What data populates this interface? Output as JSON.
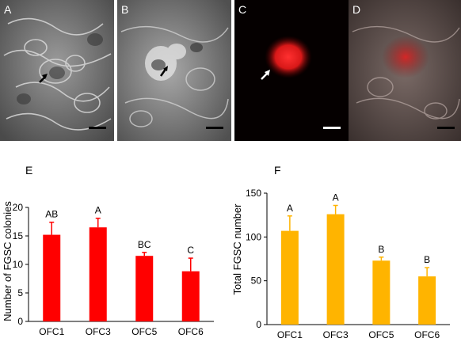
{
  "micrographs": {
    "panels": [
      {
        "label": "A",
        "style": "phase-contrast",
        "arrow": "black"
      },
      {
        "label": "B",
        "style": "phase-contrast",
        "arrow": "black"
      },
      {
        "label": "C",
        "style": "fluorescence-red",
        "arrow": "white"
      },
      {
        "label": "D",
        "style": "merged",
        "arrow": "none"
      }
    ]
  },
  "chart_data": [
    {
      "type": "bar",
      "panel_label": "E",
      "categories": [
        "OFC1",
        "OFC3",
        "OFC5",
        "OFC6"
      ],
      "values": [
        15.2,
        16.5,
        11.5,
        8.8
      ],
      "errors": [
        2.2,
        1.6,
        0.6,
        2.3
      ],
      "annotations": [
        "AB",
        "A",
        "BC",
        "C"
      ],
      "ylabel": "Number of FGSC colonies",
      "ylim": [
        0,
        20
      ],
      "yticks": [
        0,
        5,
        10,
        15,
        20
      ],
      "color": "#ff0000",
      "grid": false
    },
    {
      "type": "bar",
      "panel_label": "F",
      "categories": [
        "OFC1",
        "OFC3",
        "OFC5",
        "OFC6"
      ],
      "values": [
        107,
        126,
        73,
        55
      ],
      "errors": [
        17,
        10,
        4,
        10
      ],
      "annotations": [
        "A",
        "A",
        "B",
        "B"
      ],
      "ylabel": "Total FGSC number",
      "ylim": [
        0,
        150
      ],
      "yticks": [
        0,
        50,
        100,
        150
      ],
      "color": "#ffb400",
      "grid": false
    }
  ]
}
